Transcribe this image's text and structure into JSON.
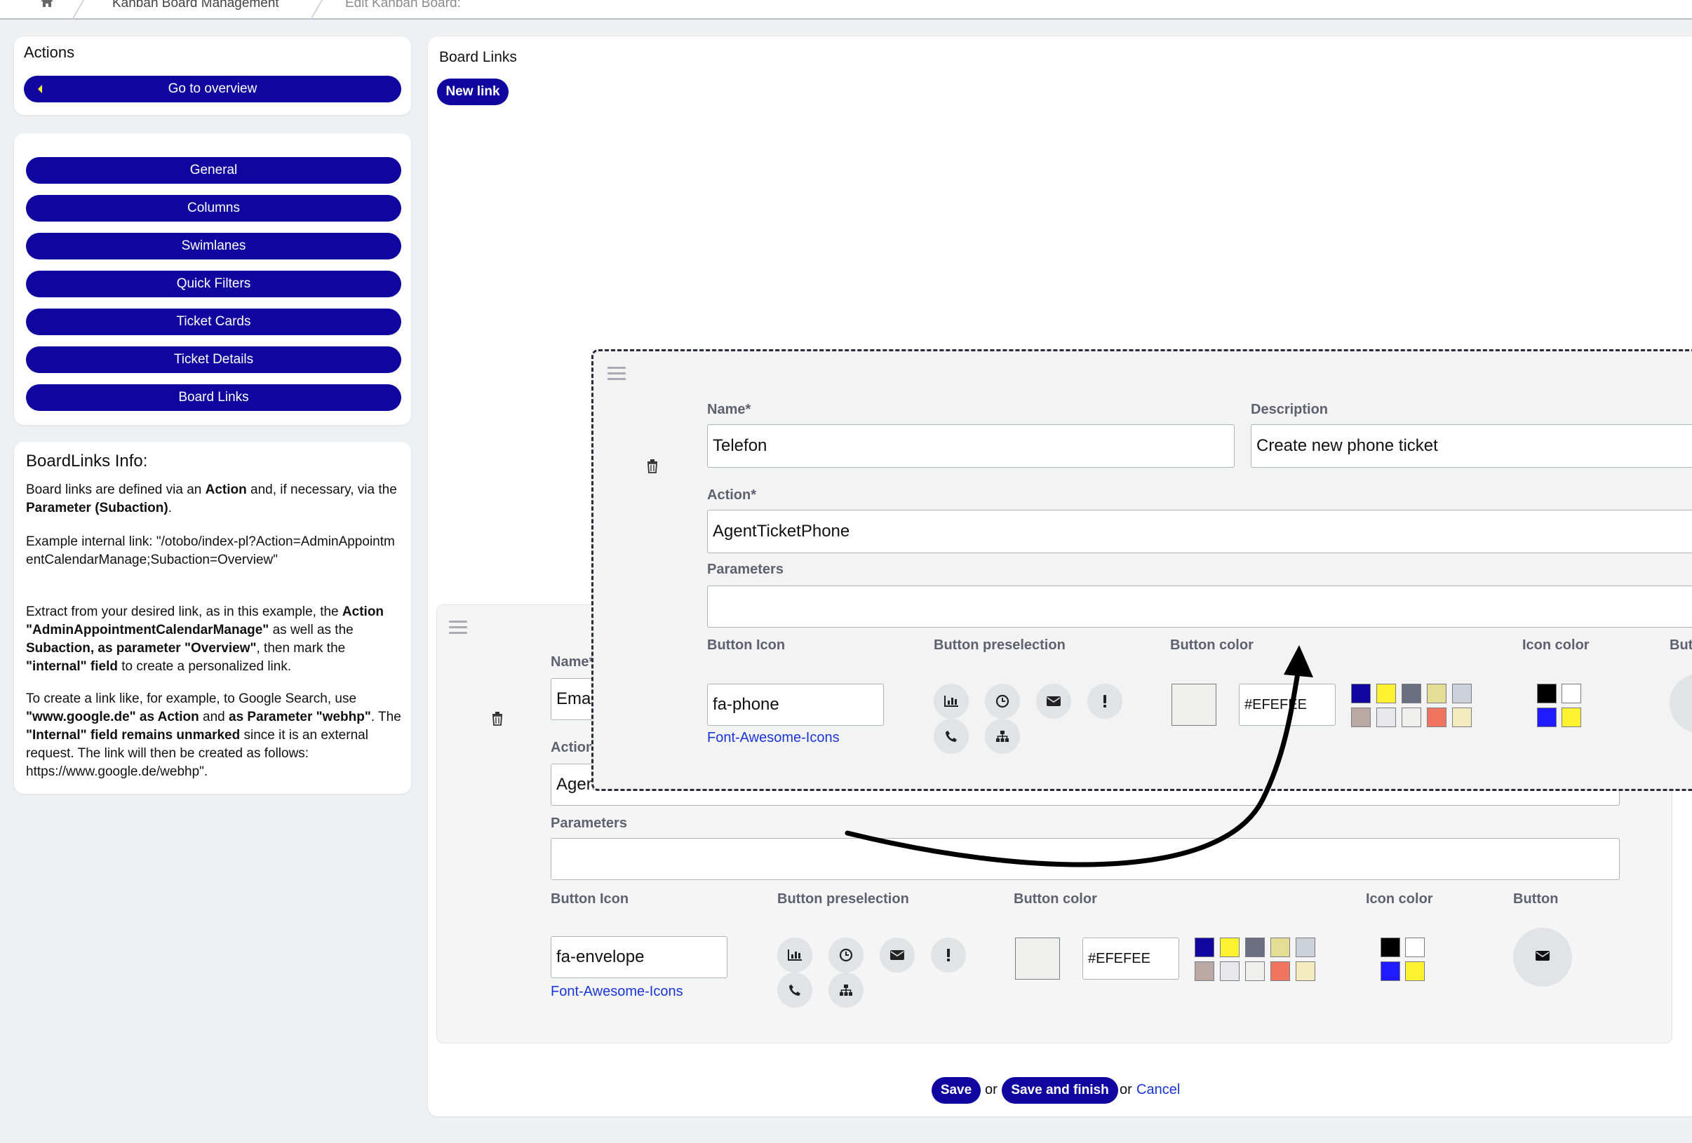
{
  "breadcrumb": {
    "items": [
      "Kanban Board Management",
      "Edit Kanban Board:"
    ]
  },
  "actions": {
    "title": "Actions",
    "overview_button": "Go to overview"
  },
  "nav": {
    "items": [
      "General",
      "Columns",
      "Swimlanes",
      "Quick Filters",
      "Ticket Cards",
      "Ticket Details",
      "Board Links"
    ]
  },
  "info": {
    "title": "BoardLinks Info:",
    "p1": [
      "Board links are defined via an ",
      "Action",
      " and, if necessary, via the ",
      "Parameter (Subaction)",
      "."
    ],
    "p2": "Example internal link: \"/otobo/index-pl?Action=AdminAppointmentCalendarManage;Subaction=Overview\"",
    "p3": [
      "Extract from your desired link, as in this example, the ",
      "Action \"AdminAppointmentCalendarManage\"",
      " as well as the ",
      "Subaction, as parameter \"Overview\"",
      ", then mark the ",
      "\"internal\" field",
      " to create a personalized link."
    ],
    "p4": [
      "To create a link like, for example, to Google Search, use ",
      "\"www.google.de\" as Action",
      " and ",
      "as Parameter \"webhp\"",
      ". The ",
      "\"Internal\" field remains unmarked",
      " since it is an external request. The link will then be created as follows: https://www.google.de/webhp\"."
    ]
  },
  "main": {
    "title": "Board Links",
    "new_link_button": "New link"
  },
  "back_link": {
    "name_label": "Name*",
    "name_value": "Email",
    "action_label": "Action*",
    "action_value": "AgentTicketEmail",
    "parameters_label": "Parameters",
    "parameters_value": "",
    "button_icon_label": "Button Icon",
    "button_icon_value": "fa-envelope",
    "fa_link": "Font-Awesome-Icons",
    "preselection_label": "Button preselection",
    "button_color_label": "Button color",
    "button_color_value": "#EFEFEE",
    "icon_color_label": "Icon color",
    "button_label": "Button"
  },
  "front_link": {
    "name_label": "Name*",
    "name_value": "Telefon",
    "description_label": "Description",
    "description_value": "Create new phone ticket",
    "action_label": "Action*",
    "action_value": "AgentTicketPhone",
    "parameters_label": "Parameters",
    "parameters_value": "",
    "button_icon_label": "Button Icon",
    "button_icon_value": "fa-phone",
    "fa_link": "Font-Awesome-Icons",
    "preselection_label": "Button preselection",
    "button_color_label": "Button color",
    "button_color_value": "#EFEFEE",
    "icon_color_label": "Icon color",
    "button_label": "Butt"
  },
  "palette": {
    "button_colors": [
      "#10069f",
      "#fff22e",
      "#6b6f80",
      "#e6dd94",
      "#cdd2da",
      "#b9a8a4",
      "#e8e8ea",
      "#efefee",
      "#f07561",
      "#f2ecbe"
    ],
    "icon_colors": [
      "#000000",
      "#ffffff",
      "#1f1aff",
      "#fff22e"
    ]
  },
  "footer": {
    "save": "Save",
    "or1": "or",
    "save_finish": "Save and finish",
    "or2": "or",
    "cancel": "Cancel"
  }
}
